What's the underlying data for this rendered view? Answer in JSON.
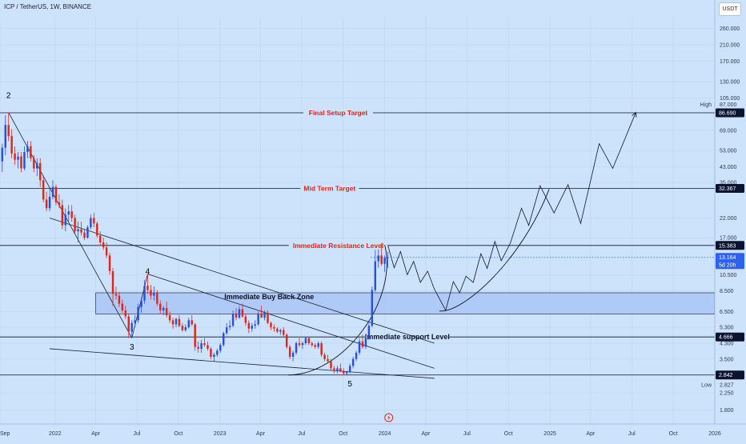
{
  "header": {
    "symbol": "ICP / TetherUS, 1W, BINANCE",
    "currency_button": "USDT"
  },
  "colors": {
    "background": "#cce3fb",
    "bull": "#2a4fd8",
    "bear": "#e0261b",
    "zone_fill": "#a9c6f6",
    "tag": "#0c1330",
    "tag_current": "#2d62f0"
  },
  "chart_data": {
    "type": "candlestick",
    "y_scale": "log",
    "ylim": [
      1.5,
      300
    ],
    "x_tick_labels": [
      "Sep",
      "2022",
      "Apr",
      "Jul",
      "Oct",
      "2023",
      "Apr",
      "Jul",
      "Oct",
      "2024",
      "Apr",
      "Jul",
      "Oct",
      "2025",
      "Apr",
      "Jul",
      "Oct",
      "2026"
    ],
    "y_tick_labels": [
      "260.000",
      "210.000",
      "170.000",
      "130.000",
      "105.000",
      "69.000",
      "53.000",
      "43.000",
      "35.000",
      "22.000",
      "17.000",
      "10.500",
      "8.500",
      "6.500",
      "5.300",
      "4.300",
      "3.500",
      "2.250",
      "1.800"
    ],
    "y_ticks": [
      260,
      210,
      170,
      130,
      105,
      69,
      53,
      43,
      35,
      22,
      17,
      10.5,
      8.5,
      6.5,
      5.3,
      4.3,
      3.5,
      2.25,
      1.8
    ],
    "price_tags": [
      {
        "label": "86.690",
        "value": 86.69,
        "style": "dark"
      },
      {
        "label": "32.367",
        "value": 32.367,
        "style": "dark"
      },
      {
        "label": "15.383",
        "value": 15.383,
        "style": "dark"
      },
      {
        "label": "13.164",
        "sub": "5d 20h",
        "value": 13.164,
        "style": "current"
      },
      {
        "label": "4.666",
        "value": 4.666,
        "style": "dark"
      },
      {
        "label": "2.842",
        "value": 2.842,
        "style": "dark"
      }
    ],
    "extremes": [
      {
        "name": "High",
        "value_label": "87.000",
        "value": 87.0
      },
      {
        "name": "Low",
        "value_label": "2.827",
        "value": 2.827
      }
    ],
    "horizontal_levels": [
      {
        "label": "Final Setup Target",
        "value": 86.69
      },
      {
        "label": "Mid Term Target",
        "value": 32.367
      },
      {
        "label": "Immediate Resistance Level",
        "value": 15.383
      },
      {
        "label": "Immediate support Level",
        "value": 4.666
      },
      {
        "label": "",
        "value": 2.842
      }
    ],
    "zones": [
      {
        "label": "Immediate Buy Back Zone",
        "from": 6.3,
        "to": 8.3
      }
    ],
    "wave_labels": [
      {
        "label": "2",
        "date": "2021-09-20",
        "value": 105
      },
      {
        "label": "3",
        "date": "2022-06-20",
        "value": 3.95
      },
      {
        "label": "4",
        "date": "2022-07-25",
        "value": 10.6
      },
      {
        "label": "5",
        "date": "2023-10-16",
        "value": 2.45
      }
    ],
    "trendlines": [
      {
        "from": [
          "2021-09-20",
          87
        ],
        "to": [
          "2022-06-20",
          4.6
        ]
      },
      {
        "from": [
          "2021-12-20",
          22
        ],
        "to": [
          "2024-04-20",
          4.3
        ]
      },
      {
        "from": [
          "2022-07-25",
          10.6
        ],
        "to": [
          "2024-04-20",
          3.1
        ]
      },
      {
        "from": [
          "2021-12-20",
          4.0
        ],
        "to": [
          "2024-04-20",
          2.72
        ]
      },
      {
        "from": [
          "2022-06-20",
          4.6
        ],
        "to": [
          "2022-07-25",
          10.6
        ]
      }
    ],
    "candles": [
      {
        "t": "2021-09-06",
        "o": 46,
        "h": 58,
        "l": 40,
        "c": 55
      },
      {
        "t": "2021-09-13",
        "o": 55,
        "h": 84,
        "l": 50,
        "c": 74
      },
      {
        "t": "2021-09-20",
        "o": 74,
        "h": 87,
        "l": 60,
        "c": 64
      },
      {
        "t": "2021-09-27",
        "o": 64,
        "h": 70,
        "l": 48,
        "c": 51
      },
      {
        "t": "2021-10-04",
        "o": 51,
        "h": 56,
        "l": 44,
        "c": 47
      },
      {
        "t": "2021-10-11",
        "o": 47,
        "h": 52,
        "l": 42,
        "c": 49
      },
      {
        "t": "2021-10-18",
        "o": 49,
        "h": 52,
        "l": 40,
        "c": 42
      },
      {
        "t": "2021-10-25",
        "o": 42,
        "h": 56,
        "l": 41,
        "c": 52
      },
      {
        "t": "2021-11-01",
        "o": 52,
        "h": 60,
        "l": 48,
        "c": 56
      },
      {
        "t": "2021-11-08",
        "o": 56,
        "h": 60,
        "l": 46,
        "c": 48
      },
      {
        "t": "2021-11-15",
        "o": 48,
        "h": 50,
        "l": 40,
        "c": 42
      },
      {
        "t": "2021-11-22",
        "o": 42,
        "h": 48,
        "l": 38,
        "c": 45
      },
      {
        "t": "2021-11-29",
        "o": 45,
        "h": 48,
        "l": 33,
        "c": 36
      },
      {
        "t": "2021-12-06",
        "o": 36,
        "h": 38,
        "l": 27,
        "c": 28
      },
      {
        "t": "2021-12-13",
        "o": 28,
        "h": 31,
        "l": 24,
        "c": 25
      },
      {
        "t": "2021-12-20",
        "o": 25,
        "h": 32,
        "l": 24,
        "c": 29
      },
      {
        "t": "2021-12-27",
        "o": 29,
        "h": 36,
        "l": 28,
        "c": 33
      },
      {
        "t": "2022-01-03",
        "o": 33,
        "h": 34,
        "l": 26,
        "c": 27
      },
      {
        "t": "2022-01-10",
        "o": 27,
        "h": 30,
        "l": 25,
        "c": 26
      },
      {
        "t": "2022-01-17",
        "o": 26,
        "h": 28,
        "l": 19,
        "c": 20
      },
      {
        "t": "2022-01-24",
        "o": 20,
        "h": 25,
        "l": 18.5,
        "c": 23
      },
      {
        "t": "2022-01-31",
        "o": 23,
        "h": 26,
        "l": 21,
        "c": 24
      },
      {
        "t": "2022-02-07",
        "o": 24,
        "h": 26,
        "l": 21,
        "c": 22
      },
      {
        "t": "2022-02-14",
        "o": 22,
        "h": 23,
        "l": 18,
        "c": 18.5
      },
      {
        "t": "2022-02-21",
        "o": 18.5,
        "h": 21,
        "l": 16,
        "c": 19
      },
      {
        "t": "2022-02-28",
        "o": 19,
        "h": 21,
        "l": 17.5,
        "c": 18.2
      },
      {
        "t": "2022-03-07",
        "o": 18.2,
        "h": 19,
        "l": 16.5,
        "c": 17
      },
      {
        "t": "2022-03-14",
        "o": 17,
        "h": 20,
        "l": 16.8,
        "c": 19.5
      },
      {
        "t": "2022-03-21",
        "o": 19.5,
        "h": 23,
        "l": 19,
        "c": 22
      },
      {
        "t": "2022-03-28",
        "o": 22,
        "h": 23.5,
        "l": 19.5,
        "c": 20.5
      },
      {
        "t": "2022-04-04",
        "o": 20.5,
        "h": 21,
        "l": 17,
        "c": 17.5
      },
      {
        "t": "2022-04-11",
        "o": 17.5,
        "h": 18.5,
        "l": 15.5,
        "c": 16
      },
      {
        "t": "2022-04-18",
        "o": 16,
        "h": 17,
        "l": 14.5,
        "c": 15
      },
      {
        "t": "2022-04-25",
        "o": 15,
        "h": 16,
        "l": 13,
        "c": 13.5
      },
      {
        "t": "2022-05-02",
        "o": 13.5,
        "h": 14,
        "l": 10.5,
        "c": 11
      },
      {
        "t": "2022-05-09",
        "o": 11,
        "h": 11.5,
        "l": 7,
        "c": 8.2
      },
      {
        "t": "2022-05-16",
        "o": 8.2,
        "h": 9,
        "l": 7.6,
        "c": 8.0
      },
      {
        "t": "2022-05-23",
        "o": 8.0,
        "h": 8.4,
        "l": 6.9,
        "c": 7.2
      },
      {
        "t": "2022-05-30",
        "o": 7.2,
        "h": 7.6,
        "l": 6.4,
        "c": 6.6
      },
      {
        "t": "2022-06-06",
        "o": 6.6,
        "h": 7,
        "l": 5.9,
        "c": 6.1
      },
      {
        "t": "2022-06-13",
        "o": 6.1,
        "h": 6.3,
        "l": 4.6,
        "c": 5.0
      },
      {
        "t": "2022-06-20",
        "o": 5.0,
        "h": 5.8,
        "l": 4.6,
        "c": 5.6
      },
      {
        "t": "2022-06-27",
        "o": 5.6,
        "h": 6.2,
        "l": 5.3,
        "c": 5.8
      },
      {
        "t": "2022-07-04",
        "o": 5.8,
        "h": 7.2,
        "l": 5.6,
        "c": 6.9
      },
      {
        "t": "2022-07-11",
        "o": 6.9,
        "h": 7.8,
        "l": 6.4,
        "c": 7.5
      },
      {
        "t": "2022-07-18",
        "o": 7.5,
        "h": 9.8,
        "l": 7.2,
        "c": 9.1
      },
      {
        "t": "2022-07-25",
        "o": 9.1,
        "h": 10.6,
        "l": 8.2,
        "c": 8.6
      },
      {
        "t": "2022-08-01",
        "o": 8.6,
        "h": 9.2,
        "l": 7.6,
        "c": 8.0
      },
      {
        "t": "2022-08-08",
        "o": 8.0,
        "h": 9.0,
        "l": 7.5,
        "c": 8.3
      },
      {
        "t": "2022-08-15",
        "o": 8.3,
        "h": 8.6,
        "l": 7.0,
        "c": 7.2
      },
      {
        "t": "2022-08-22",
        "o": 7.2,
        "h": 7.5,
        "l": 6.3,
        "c": 6.6
      },
      {
        "t": "2022-08-29",
        "o": 6.6,
        "h": 7.0,
        "l": 6.2,
        "c": 6.8
      },
      {
        "t": "2022-09-05",
        "o": 6.8,
        "h": 7.4,
        "l": 6.0,
        "c": 6.2
      },
      {
        "t": "2022-09-12",
        "o": 6.2,
        "h": 6.5,
        "l": 5.6,
        "c": 5.8
      },
      {
        "t": "2022-09-19",
        "o": 5.8,
        "h": 6.0,
        "l": 5.2,
        "c": 5.5
      },
      {
        "t": "2022-09-26",
        "o": 5.5,
        "h": 6.0,
        "l": 5.3,
        "c": 5.9
      },
      {
        "t": "2022-10-03",
        "o": 5.9,
        "h": 6.2,
        "l": 5.3,
        "c": 5.4
      },
      {
        "t": "2022-10-10",
        "o": 5.4,
        "h": 5.6,
        "l": 5.0,
        "c": 5.1
      },
      {
        "t": "2022-10-17",
        "o": 5.1,
        "h": 5.5,
        "l": 5.0,
        "c": 5.3
      },
      {
        "t": "2022-10-24",
        "o": 5.3,
        "h": 6.0,
        "l": 5.2,
        "c": 5.8
      },
      {
        "t": "2022-10-31",
        "o": 5.8,
        "h": 6.2,
        "l": 5.4,
        "c": 5.5
      },
      {
        "t": "2022-11-07",
        "o": 5.5,
        "h": 5.6,
        "l": 3.9,
        "c": 4.1
      },
      {
        "t": "2022-11-14",
        "o": 4.1,
        "h": 4.4,
        "l": 3.8,
        "c": 4.0
      },
      {
        "t": "2022-11-21",
        "o": 4.0,
        "h": 4.5,
        "l": 3.8,
        "c": 4.3
      },
      {
        "t": "2022-11-28",
        "o": 4.3,
        "h": 4.6,
        "l": 4.1,
        "c": 4.2
      },
      {
        "t": "2022-12-05",
        "o": 4.2,
        "h": 4.4,
        "l": 3.9,
        "c": 4.0
      },
      {
        "t": "2022-12-12",
        "o": 4.0,
        "h": 4.1,
        "l": 3.5,
        "c": 3.6
      },
      {
        "t": "2022-12-19",
        "o": 3.6,
        "h": 3.8,
        "l": 3.4,
        "c": 3.7
      },
      {
        "t": "2022-12-26",
        "o": 3.7,
        "h": 4.0,
        "l": 3.6,
        "c": 3.9
      },
      {
        "t": "2023-01-02",
        "o": 3.9,
        "h": 4.3,
        "l": 3.8,
        "c": 4.2
      },
      {
        "t": "2023-01-09",
        "o": 4.2,
        "h": 5.0,
        "l": 4.1,
        "c": 4.9
      },
      {
        "t": "2023-01-16",
        "o": 4.9,
        "h": 5.6,
        "l": 4.8,
        "c": 5.3
      },
      {
        "t": "2023-01-23",
        "o": 5.3,
        "h": 5.8,
        "l": 5.1,
        "c": 5.4
      },
      {
        "t": "2023-01-30",
        "o": 5.4,
        "h": 6.6,
        "l": 5.3,
        "c": 6.3
      },
      {
        "t": "2023-02-06",
        "o": 6.3,
        "h": 6.8,
        "l": 5.8,
        "c": 6.0
      },
      {
        "t": "2023-02-13",
        "o": 6.0,
        "h": 7.0,
        "l": 5.9,
        "c": 6.7
      },
      {
        "t": "2023-02-20",
        "o": 6.7,
        "h": 7.2,
        "l": 6.0,
        "c": 6.1
      },
      {
        "t": "2023-02-27",
        "o": 6.1,
        "h": 6.3,
        "l": 5.4,
        "c": 5.6
      },
      {
        "t": "2023-03-06",
        "o": 5.6,
        "h": 5.8,
        "l": 4.9,
        "c": 5.2
      },
      {
        "t": "2023-03-13",
        "o": 5.2,
        "h": 5.6,
        "l": 5.0,
        "c": 5.4
      },
      {
        "t": "2023-03-20",
        "o": 5.4,
        "h": 5.8,
        "l": 5.2,
        "c": 5.5
      },
      {
        "t": "2023-03-27",
        "o": 5.5,
        "h": 6.5,
        "l": 5.4,
        "c": 6.3
      },
      {
        "t": "2023-04-03",
        "o": 6.3,
        "h": 7.0,
        "l": 6.0,
        "c": 6.0
      },
      {
        "t": "2023-04-10",
        "o": 6.0,
        "h": 6.6,
        "l": 5.8,
        "c": 6.4
      },
      {
        "t": "2023-04-17",
        "o": 6.4,
        "h": 6.6,
        "l": 5.5,
        "c": 5.6
      },
      {
        "t": "2023-04-24",
        "o": 5.6,
        "h": 5.7,
        "l": 5.1,
        "c": 5.3
      },
      {
        "t": "2023-05-01",
        "o": 5.3,
        "h": 5.5,
        "l": 5.0,
        "c": 5.2
      },
      {
        "t": "2023-05-08",
        "o": 5.2,
        "h": 5.3,
        "l": 4.9,
        "c": 5.0
      },
      {
        "t": "2023-05-15",
        "o": 5.0,
        "h": 5.2,
        "l": 4.8,
        "c": 5.1
      },
      {
        "t": "2023-05-22",
        "o": 5.1,
        "h": 5.3,
        "l": 4.7,
        "c": 4.8
      },
      {
        "t": "2023-05-29",
        "o": 4.8,
        "h": 4.9,
        "l": 4.0,
        "c": 4.1
      },
      {
        "t": "2023-06-05",
        "o": 4.1,
        "h": 4.2,
        "l": 3.5,
        "c": 3.6
      },
      {
        "t": "2023-06-12",
        "o": 3.6,
        "h": 3.9,
        "l": 3.4,
        "c": 3.8
      },
      {
        "t": "2023-06-19",
        "o": 3.8,
        "h": 4.4,
        "l": 3.7,
        "c": 4.3
      },
      {
        "t": "2023-06-26",
        "o": 4.3,
        "h": 4.6,
        "l": 4.1,
        "c": 4.2
      },
      {
        "t": "2023-07-03",
        "o": 4.2,
        "h": 4.4,
        "l": 4.0,
        "c": 4.3
      },
      {
        "t": "2023-07-10",
        "o": 4.3,
        "h": 4.7,
        "l": 4.2,
        "c": 4.6
      },
      {
        "t": "2023-07-17",
        "o": 4.6,
        "h": 4.7,
        "l": 4.2,
        "c": 4.3
      },
      {
        "t": "2023-07-24",
        "o": 4.3,
        "h": 4.4,
        "l": 4.1,
        "c": 4.2
      },
      {
        "t": "2023-07-31",
        "o": 4.2,
        "h": 4.3,
        "l": 4.0,
        "c": 4.1
      },
      {
        "t": "2023-08-07",
        "o": 4.1,
        "h": 4.4,
        "l": 4.0,
        "c": 4.3
      },
      {
        "t": "2023-08-14",
        "o": 4.3,
        "h": 4.4,
        "l": 3.6,
        "c": 3.7
      },
      {
        "t": "2023-08-21",
        "o": 3.7,
        "h": 3.8,
        "l": 3.4,
        "c": 3.5
      },
      {
        "t": "2023-08-28",
        "o": 3.5,
        "h": 3.7,
        "l": 3.3,
        "c": 3.4
      },
      {
        "t": "2023-09-04",
        "o": 3.4,
        "h": 3.5,
        "l": 3.0,
        "c": 3.1
      },
      {
        "t": "2023-09-11",
        "o": 3.1,
        "h": 3.2,
        "l": 2.9,
        "c": 3.0
      },
      {
        "t": "2023-09-18",
        "o": 3.0,
        "h": 3.2,
        "l": 2.9,
        "c": 3.1
      },
      {
        "t": "2023-09-25",
        "o": 3.1,
        "h": 3.3,
        "l": 2.95,
        "c": 3.0
      },
      {
        "t": "2023-10-02",
        "o": 3.0,
        "h": 3.1,
        "l": 2.83,
        "c": 2.9
      },
      {
        "t": "2023-10-09",
        "o": 2.9,
        "h": 3.0,
        "l": 2.85,
        "c": 2.95
      },
      {
        "t": "2023-10-16",
        "o": 2.95,
        "h": 3.3,
        "l": 2.9,
        "c": 3.2
      },
      {
        "t": "2023-10-23",
        "o": 3.2,
        "h": 3.6,
        "l": 3.1,
        "c": 3.5
      },
      {
        "t": "2023-10-30",
        "o": 3.5,
        "h": 3.9,
        "l": 3.4,
        "c": 3.8
      },
      {
        "t": "2023-11-06",
        "o": 3.8,
        "h": 4.6,
        "l": 3.7,
        "c": 4.4
      },
      {
        "t": "2023-11-13",
        "o": 4.4,
        "h": 4.8,
        "l": 4.0,
        "c": 4.1
      },
      {
        "t": "2023-11-20",
        "o": 4.1,
        "h": 4.7,
        "l": 4.0,
        "c": 4.6
      },
      {
        "t": "2023-11-27",
        "o": 4.6,
        "h": 5.6,
        "l": 4.5,
        "c": 5.4
      },
      {
        "t": "2023-12-04",
        "o": 5.4,
        "h": 9.0,
        "l": 5.3,
        "c": 8.6
      },
      {
        "t": "2023-12-11",
        "o": 8.6,
        "h": 14.5,
        "l": 8.4,
        "c": 12.5
      },
      {
        "t": "2023-12-18",
        "o": 12.5,
        "h": 14.6,
        "l": 11.5,
        "c": 13.5
      },
      {
        "t": "2023-12-25",
        "o": 13.5,
        "h": 15.9,
        "l": 11.8,
        "c": 12.1
      },
      {
        "t": "2024-01-01",
        "o": 12.1,
        "h": 13.5,
        "l": 10.9,
        "c": 13.1
      },
      {
        "t": "2024-01-08",
        "o": 13.1,
        "h": 14.2,
        "l": 11.5,
        "c": 13.164
      }
    ],
    "projection_path": [
      [
        "2024-01-08",
        15.4
      ],
      [
        "2024-01-22",
        11.5
      ],
      [
        "2024-02-05",
        14.2
      ],
      [
        "2024-02-20",
        10.5
      ],
      [
        "2024-03-05",
        12.5
      ],
      [
        "2024-03-20",
        9.5
      ],
      [
        "2024-04-05",
        11.0
      ],
      [
        "2024-04-20",
        8.7
      ],
      [
        "2024-05-15",
        6.6
      ],
      [
        "2024-06-01",
        9.6
      ],
      [
        "2024-06-15",
        8.3
      ],
      [
        "2024-06-29",
        10.3
      ],
      [
        "2024-07-15",
        9.5
      ],
      [
        "2024-08-01",
        13.8
      ],
      [
        "2024-08-15",
        11.4
      ],
      [
        "2024-09-01",
        16.2
      ],
      [
        "2024-09-15",
        12.6
      ],
      [
        "2024-10-05",
        15.8
      ],
      [
        "2024-10-30",
        25.0
      ],
      [
        "2024-11-15",
        20.0
      ],
      [
        "2024-12-10",
        33.5
      ],
      [
        "2025-01-10",
        23.5
      ],
      [
        "2025-02-10",
        34.0
      ],
      [
        "2025-03-10",
        20.5
      ],
      [
        "2025-04-20",
        58.0
      ],
      [
        "2025-05-20",
        42.0
      ],
      [
        "2025-07-10",
        87.0
      ]
    ],
    "curves": [
      {
        "name": "bowl-a",
        "points": [
          [
            "2023-06-01",
            2.84
          ],
          [
            "2023-10-01",
            2.84
          ],
          [
            "2024-02-01",
            7.5
          ],
          [
            "2024-01-01",
            15.5
          ]
        ]
      },
      {
        "name": "bowl-b",
        "points": [
          [
            "2024-05-01",
            6.55
          ],
          [
            "2024-06-20",
            6.3
          ],
          [
            "2024-10-30",
            12.5
          ],
          [
            "2024-12-30",
            32.0
          ]
        ]
      }
    ]
  }
}
